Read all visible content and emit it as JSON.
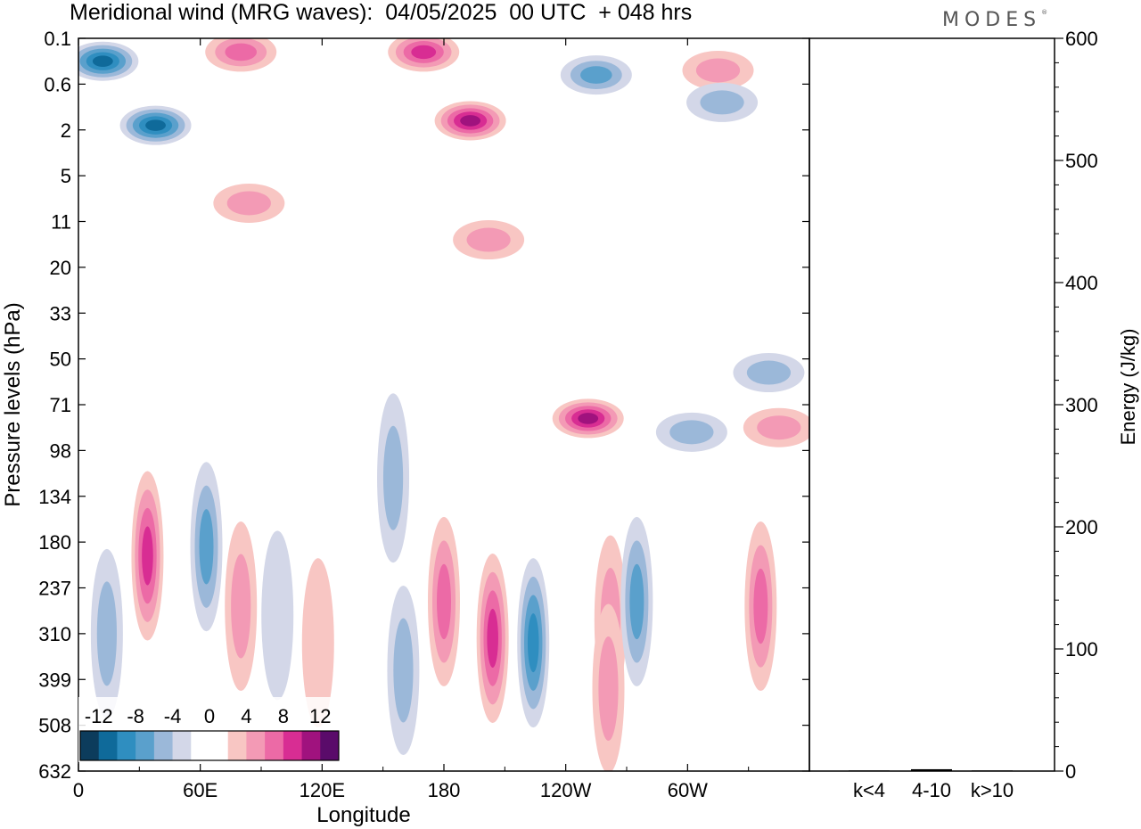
{
  "title": "Meridional wind (MRG waves):  04/05/2025  00 UTC  + 048 hrs",
  "logo": "MODES",
  "colors": {
    "neg": [
      "#0c3c5c",
      "#0f6a9a",
      "#2f8ec0",
      "#5aa0cc",
      "#9bb8d9",
      "#d3d7e8"
    ],
    "pos": [
      "#f8c6c3",
      "#f39ab5",
      "#ec6aa6",
      "#d82d93",
      "#a0127e",
      "#5a0b6a"
    ],
    "zero": "#ffffff"
  },
  "chart_data": [
    {
      "type": "heatmap",
      "title": "Meridional wind (MRG waves):  04/05/2025  00 UTC  + 048 hrs",
      "xlabel": "Longitude",
      "ylabel": "Pressure levels (hPa)",
      "x_ticks": [
        "0",
        "60E",
        "120E",
        "180",
        "120W",
        "60W"
      ],
      "y_ticks": [
        "0.1",
        "0.6",
        "2",
        "5",
        "11",
        "20",
        "33",
        "50",
        "71",
        "98",
        "134",
        "180",
        "237",
        "310",
        "399",
        "508",
        "632"
      ],
      "colorbar_ticks": [
        "-12",
        "-8",
        "-4",
        "0",
        "4",
        "8",
        "12"
      ],
      "colorbar_levels": [
        -14,
        -12,
        -10,
        -8,
        -6,
        -4,
        -2,
        2,
        4,
        6,
        8,
        10,
        12,
        14
      ],
      "features": [
        {
          "lon": 12,
          "lev": 0.5,
          "value": -9
        },
        {
          "lon": 38,
          "lev": 1.9,
          "value": -10
        },
        {
          "lon": 80,
          "lev": 0.3,
          "value": 6
        },
        {
          "lon": 84,
          "lev": 3.6,
          "value": 3
        },
        {
          "lon": 170,
          "lev": 0.3,
          "value": 7
        },
        {
          "lon": 193,
          "lev": 1.8,
          "value": 10
        },
        {
          "lon": 202,
          "lev": 4.4,
          "value": 4
        },
        {
          "lon": 255,
          "lev": 0.8,
          "value": -5
        },
        {
          "lon": 315,
          "lev": 0.7,
          "value": 4
        },
        {
          "lon": 317,
          "lev": 1.4,
          "value": -4
        },
        {
          "lon": 34,
          "lev": 11.3,
          "value": 7
        },
        {
          "lon": 63,
          "lev": 11.1,
          "value": -6
        },
        {
          "lon": 80,
          "lev": 12.4,
          "value": 4
        },
        {
          "lon": 14,
          "lev": 13.0,
          "value": -4
        },
        {
          "lon": 224,
          "lev": 13.2,
          "value": -8
        },
        {
          "lon": 204,
          "lev": 13.1,
          "value": 8
        },
        {
          "lon": 180,
          "lev": 12.3,
          "value": 5
        },
        {
          "lon": 251,
          "lev": 8.3,
          "value": 9
        },
        {
          "lon": 262,
          "lev": 12.7,
          "value": 4
        },
        {
          "lon": 261,
          "lev": 14.2,
          "value": 4
        },
        {
          "lon": 275,
          "lev": 12.3,
          "value": -6
        },
        {
          "lon": 302,
          "lev": 8.6,
          "value": -4
        },
        {
          "lon": 336,
          "lev": 12.4,
          "value": 6
        },
        {
          "lon": 340,
          "lev": 7.3,
          "value": -4
        },
        {
          "lon": 345,
          "lev": 8.5,
          "value": 3
        },
        {
          "lon": 155,
          "lev": 9.6,
          "value": -3
        },
        {
          "lon": 98,
          "lev": 12.6,
          "value": -2
        },
        {
          "lon": 118,
          "lev": 13.2,
          "value": 2
        },
        {
          "lon": 160,
          "lev": 13.8,
          "value": -3
        }
      ]
    },
    {
      "type": "bar",
      "categories": [
        "k<4",
        "4-10",
        "k>10"
      ],
      "values": [
        0.5,
        1.5,
        0.5
      ],
      "ylabel": "Energy (J/kg)",
      "ylim": [
        0,
        600
      ],
      "y_ticks": [
        "0",
        "100",
        "200",
        "300",
        "400",
        "500",
        "600"
      ]
    }
  ]
}
